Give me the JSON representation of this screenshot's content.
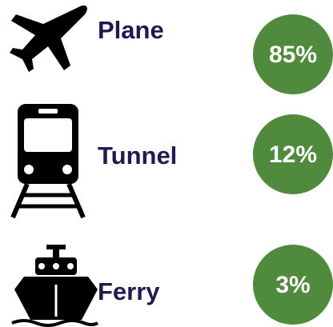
{
  "items": [
    {
      "label": "Plane",
      "value": "85%"
    },
    {
      "label": "Tunnel",
      "value": "12%"
    },
    {
      "label": "Ferry",
      "value": "3%"
    }
  ]
}
